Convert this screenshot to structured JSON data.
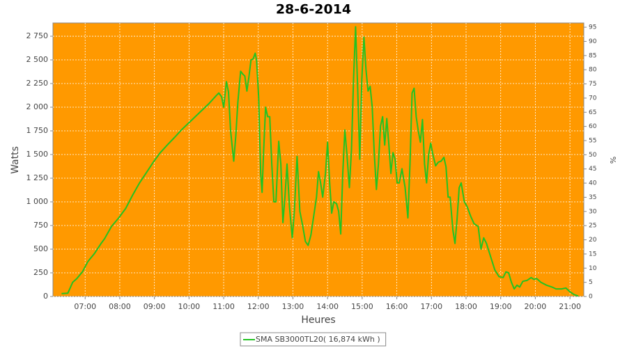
{
  "chart_data": {
    "type": "line",
    "title": "28-6-2014",
    "x_label": "Heures",
    "y_label": "Watts",
    "y2_label": "%",
    "grid": true,
    "legend_position": "bottom",
    "background": "#ff9900",
    "xlim": [
      6.07,
      21.4
    ],
    "xticks": [
      {
        "value": 7,
        "label": "07:00"
      },
      {
        "value": 8,
        "label": "08:00"
      },
      {
        "value": 9,
        "label": "09:00"
      },
      {
        "value": 10,
        "label": "10:00"
      },
      {
        "value": 11,
        "label": "11:00"
      },
      {
        "value": 12,
        "label": "12:00"
      },
      {
        "value": 13,
        "label": "13:00"
      },
      {
        "value": 14,
        "label": "14:00"
      },
      {
        "value": 15,
        "label": "15:00"
      },
      {
        "value": 16,
        "label": "16:00"
      },
      {
        "value": 17,
        "label": "17:00"
      },
      {
        "value": 18,
        "label": "18:00"
      },
      {
        "value": 19,
        "label": "19:00"
      },
      {
        "value": 20,
        "label": "20:00"
      },
      {
        "value": 21,
        "label": "21:00"
      }
    ],
    "ylim": [
      0,
      2890
    ],
    "yticks": [
      0,
      250,
      500,
      750,
      {
        "value": 1000,
        "label": "1 000"
      },
      {
        "value": 1250,
        "label": "1 250"
      },
      {
        "value": 1500,
        "label": "1 500"
      },
      {
        "value": 1750,
        "label": "1 750"
      },
      {
        "value": 2000,
        "label": "2 000"
      },
      {
        "value": 2250,
        "label": "2 250"
      },
      {
        "value": 2500,
        "label": "2 500"
      },
      {
        "value": 2750,
        "label": "2 750"
      }
    ],
    "y2lim": [
      0,
      96.5
    ],
    "y2ticks": [
      0,
      5,
      10,
      15,
      20,
      25,
      30,
      35,
      40,
      45,
      50,
      55,
      60,
      65,
      70,
      75,
      80,
      85,
      90,
      95
    ],
    "x": [
      6.32,
      6.5,
      6.64,
      6.76,
      6.92,
      7.08,
      7.26,
      7.46,
      7.56,
      7.76,
      7.97,
      8.17,
      8.37,
      8.57,
      8.77,
      8.97,
      9.17,
      9.37,
      9.58,
      9.78,
      9.98,
      10.18,
      10.38,
      10.58,
      10.78,
      10.86,
      10.94,
      11.0,
      11.08,
      11.14,
      11.2,
      11.29,
      11.35,
      11.41,
      11.49,
      11.55,
      11.61,
      11.67,
      11.73,
      11.79,
      11.85,
      11.91,
      11.95,
      12.01,
      12.07,
      12.11,
      12.15,
      12.21,
      12.27,
      12.33,
      12.39,
      12.45,
      12.51,
      12.59,
      12.65,
      12.71,
      12.77,
      12.83,
      12.9,
      12.98,
      13.04,
      13.12,
      13.2,
      13.28,
      13.36,
      13.44,
      13.52,
      13.6,
      13.68,
      13.74,
      13.8,
      13.86,
      13.94,
      14.0,
      14.06,
      14.12,
      14.18,
      14.26,
      14.32,
      14.38,
      14.44,
      14.5,
      14.56,
      14.63,
      14.69,
      14.75,
      14.81,
      14.87,
      14.93,
      14.99,
      15.05,
      15.11,
      15.17,
      15.23,
      15.29,
      15.35,
      15.41,
      15.47,
      15.53,
      15.59,
      15.65,
      15.71,
      15.77,
      15.83,
      15.89,
      15.95,
      16.01,
      16.07,
      16.15,
      16.24,
      16.32,
      16.38,
      16.44,
      16.5,
      16.56,
      16.62,
      16.68,
      16.74,
      16.8,
      16.86,
      16.92,
      16.98,
      17.04,
      17.12,
      17.2,
      17.28,
      17.36,
      17.42,
      17.48,
      17.54,
      17.62,
      17.68,
      17.74,
      17.8,
      17.86,
      17.95,
      18.03,
      18.13,
      18.23,
      18.35,
      18.43,
      18.51,
      18.59,
      18.71,
      18.83,
      18.95,
      19.07,
      19.15,
      19.23,
      19.31,
      19.39,
      19.47,
      19.55,
      19.64,
      19.76,
      19.88,
      19.96,
      20.04,
      20.16,
      20.32,
      20.48,
      20.6,
      20.76,
      20.88,
      21.0,
      21.12,
      21.24
    ],
    "series": [
      {
        "name": "SMA SB3000TL20( 16,874 kWh )",
        "color": "#22c322",
        "values": [
          30,
          35,
          150,
          190,
          260,
          370,
          450,
          560,
          610,
          740,
          830,
          930,
          1070,
          1200,
          1310,
          1420,
          1520,
          1600,
          1680,
          1760,
          1830,
          1900,
          1970,
          2040,
          2120,
          2150,
          2110,
          2000,
          2270,
          2160,
          1750,
          1430,
          1700,
          2050,
          2380,
          2350,
          2330,
          2170,
          2320,
          2500,
          2510,
          2570,
          2500,
          2100,
          1300,
          1100,
          1500,
          2000,
          1900,
          1900,
          1400,
          1000,
          1000,
          1640,
          1400,
          780,
          1050,
          1400,
          950,
          620,
          900,
          1480,
          900,
          750,
          580,
          540,
          650,
          850,
          1050,
          1320,
          1200,
          1050,
          1300,
          1630,
          1200,
          880,
          1000,
          980,
          900,
          660,
          1300,
          1760,
          1500,
          1150,
          1550,
          2300,
          2850,
          2200,
          1450,
          2300,
          2740,
          2400,
          2170,
          2220,
          2000,
          1500,
          1130,
          1400,
          1800,
          1900,
          1600,
          1880,
          1600,
          1300,
          1520,
          1450,
          1200,
          1200,
          1350,
          1150,
          830,
          1400,
          2150,
          2200,
          1900,
          1750,
          1630,
          1870,
          1400,
          1200,
          1500,
          1620,
          1500,
          1380,
          1420,
          1430,
          1470,
          1370,
          1050,
          1050,
          700,
          560,
          820,
          1150,
          1200,
          1000,
          950,
          850,
          770,
          740,
          500,
          620,
          560,
          420,
          280,
          210,
          200,
          260,
          250,
          150,
          80,
          120,
          100,
          160,
          170,
          200,
          180,
          190,
          150,
          120,
          100,
          80,
          80,
          90,
          50,
          20,
          5
        ]
      }
    ]
  }
}
